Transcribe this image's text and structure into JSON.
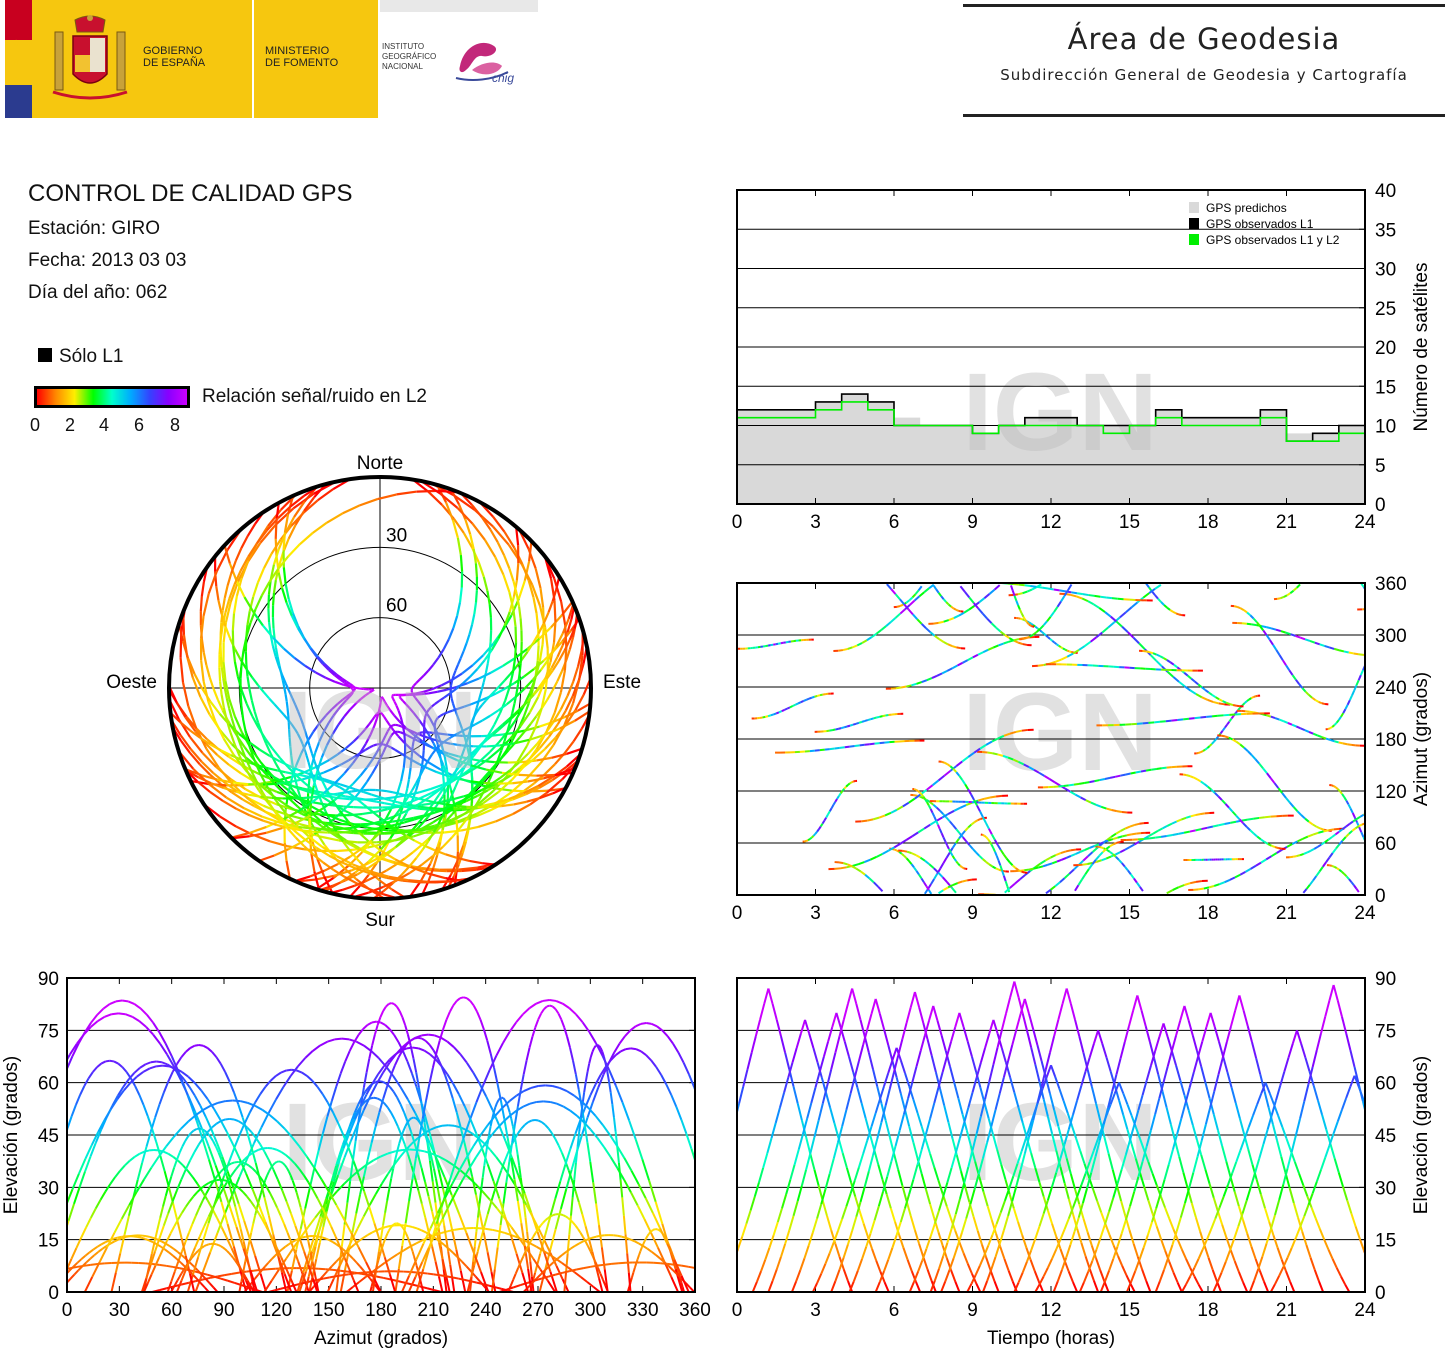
{
  "header": {
    "gov_line1": "GOBIERNO",
    "gov_line2": "DE ESPAÑA",
    "min_line1": "MINISTERIO",
    "min_line2": "DE FOMENTO",
    "ign_line1": "INSTITUTO",
    "ign_line2": "GEOGRÁFICO",
    "ign_line3": "NACIONAL",
    "cnig": "cnig",
    "area_title": "Área de Geodesia",
    "area_subtitle": "Subdirección General de Geodesia y Cartografía"
  },
  "info": {
    "title": "CONTROL DE CALIDAD GPS",
    "station": "Estación: GIRO",
    "date": "Fecha: 2013 03 03",
    "doy": "Día del año: 062",
    "legend_solo": "Sólo L1",
    "colorbar_label": "Relación señal/ruido en L2",
    "colorbar_ticks": [
      "0",
      "2",
      "4",
      "6",
      "8"
    ],
    "colorbar_colors": [
      "#ff0000",
      "#ff8800",
      "#ffee00",
      "#00ff00",
      "#00ffcc",
      "#00aaff",
      "#3344ff",
      "#8800ff",
      "#cc00ff"
    ]
  },
  "watermark": "IGN",
  "chart_data": [
    {
      "id": "satellites",
      "type": "area",
      "ylabel": "Número de satélites",
      "xlim": [
        0,
        24
      ],
      "ylim": [
        0,
        40
      ],
      "xticks": [
        "0",
        "3",
        "6",
        "9",
        "12",
        "15",
        "18",
        "21",
        "24"
      ],
      "yticks": [
        "0",
        "5",
        "10",
        "15",
        "20",
        "25",
        "30",
        "35",
        "40"
      ],
      "grid": true,
      "legend_position": "top-right",
      "legend": [
        "GPS predichos",
        "GPS observados L1",
        "GPS observados L1 y L2"
      ],
      "series_colors": [
        "#d9d9d9",
        "#000000",
        "#00ee00"
      ],
      "x": [
        0,
        1,
        2,
        3,
        4,
        5,
        6,
        7,
        8,
        9,
        10,
        11,
        12,
        13,
        14,
        15,
        16,
        17,
        18,
        19,
        20,
        21,
        22,
        23,
        24
      ],
      "predicted": [
        12,
        12,
        12,
        13,
        14,
        13,
        11,
        10,
        10,
        9,
        10,
        11,
        11,
        10,
        10,
        10,
        12,
        11,
        11,
        11,
        12,
        9,
        9,
        10,
        12
      ],
      "observed_l1": [
        12,
        12,
        12,
        13,
        14,
        13,
        10,
        10,
        10,
        9,
        10,
        11,
        11,
        10,
        10,
        10,
        12,
        11,
        11,
        11,
        12,
        8,
        9,
        10,
        12
      ],
      "observed_l1_l2": [
        11,
        11,
        11,
        12,
        13,
        12,
        10,
        10,
        10,
        9,
        10,
        10,
        10,
        10,
        9,
        10,
        11,
        10,
        10,
        10,
        11,
        8,
        8,
        9,
        11
      ]
    },
    {
      "id": "skyplot",
      "type": "scatter",
      "projection": "polar",
      "labels": {
        "north": "Norte",
        "south": "Sur",
        "east": "Este",
        "west": "Oeste"
      },
      "rings": [
        "30",
        "60"
      ],
      "note_color_scale": "SNR L2 0-8"
    },
    {
      "id": "azimuth_time",
      "type": "scatter",
      "ylabel": "Azimut (grados)",
      "xlim": [
        0,
        24
      ],
      "ylim": [
        0,
        360
      ],
      "xticks": [
        "0",
        "3",
        "6",
        "9",
        "12",
        "15",
        "18",
        "21",
        "24"
      ],
      "yticks": [
        "0",
        "60",
        "120",
        "180",
        "240",
        "300",
        "360"
      ],
      "grid": true
    },
    {
      "id": "elevation_azimuth",
      "type": "scatter",
      "xlabel": "Azimut (grados)",
      "ylabel": "Elevación (grados)",
      "xlim": [
        0,
        360
      ],
      "ylim": [
        0,
        90
      ],
      "xticks": [
        "0",
        "30",
        "60",
        "90",
        "120",
        "150",
        "180",
        "210",
        "240",
        "270",
        "300",
        "330",
        "360"
      ],
      "yticks": [
        "0",
        "15",
        "30",
        "45",
        "60",
        "75",
        "90"
      ],
      "grid": true
    },
    {
      "id": "elevation_time",
      "type": "line",
      "xlabel": "Tiempo (horas)",
      "ylabel": "Elevación (grados)",
      "xlim": [
        0,
        24
      ],
      "ylim": [
        0,
        90
      ],
      "xticks": [
        "0",
        "3",
        "6",
        "9",
        "12",
        "15",
        "18",
        "21",
        "24"
      ],
      "yticks": [
        "0",
        "15",
        "30",
        "45",
        "60",
        "75",
        "90"
      ],
      "grid": true,
      "peak_times": [
        1.2,
        2.6,
        3.8,
        4.4,
        5.3,
        6.1,
        6.8,
        7.5,
        8.5,
        9.8,
        10.6,
        11.0,
        12.0,
        12.6,
        13.8,
        14.6,
        15.3,
        16.3,
        17.1,
        18.1,
        19.2,
        20.2,
        21.4,
        22.8,
        23.6
      ],
      "peak_elevations": [
        87,
        78,
        80,
        87,
        84,
        70,
        86,
        82,
        80,
        78,
        89,
        84,
        65,
        87,
        75,
        60,
        85,
        77,
        82,
        80,
        85,
        60,
        75,
        88,
        62
      ]
    }
  ]
}
